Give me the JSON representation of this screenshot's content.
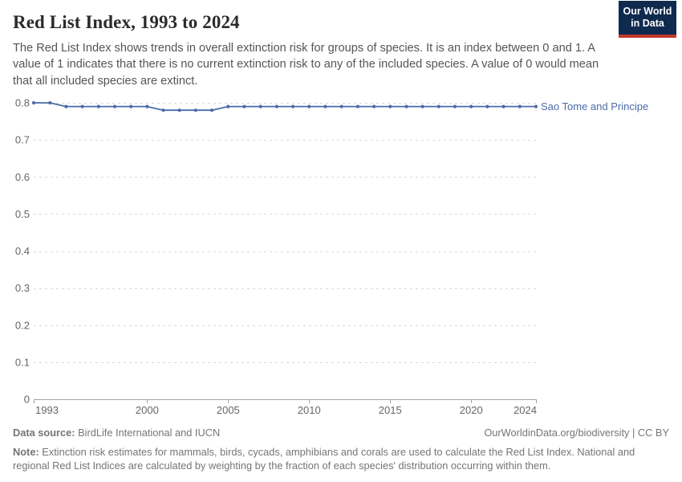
{
  "header": {
    "title": "Red List Index, 1993 to 2024",
    "subtitle": "The Red List Index shows trends in overall extinction risk for groups of species. It is an index between 0 and 1. A value of 1 indicates that there is no current extinction risk to any of the included species. A value of 0 would mean that all included species are extinct.",
    "logo": {
      "line1": "Our World",
      "line2": "in Data",
      "bg_color": "#0e2a4e",
      "accent_color": "#c0392b"
    }
  },
  "chart_data": {
    "type": "line",
    "title": "Red List Index, 1993 to 2024",
    "xlabel": "",
    "ylabel": "",
    "xlim": [
      1993,
      2024
    ],
    "ylim": [
      0,
      0.8
    ],
    "xticks": [
      1993,
      2000,
      2005,
      2010,
      2015,
      2020,
      2024
    ],
    "yticks": [
      0,
      0.1,
      0.2,
      0.3,
      0.4,
      0.5,
      0.6,
      0.7,
      0.8
    ],
    "grid": "horizontal-dashed",
    "legend_position": "right-of-line-end",
    "series": [
      {
        "name": "Sao Tome and Principe",
        "color": "#4c6ba7",
        "x": [
          1993,
          1994,
          1995,
          1996,
          1997,
          1998,
          1999,
          2000,
          2001,
          2002,
          2003,
          2004,
          2005,
          2006,
          2007,
          2008,
          2009,
          2010,
          2011,
          2012,
          2013,
          2014,
          2015,
          2016,
          2017,
          2018,
          2019,
          2020,
          2021,
          2022,
          2023,
          2024
        ],
        "values": [
          0.8,
          0.8,
          0.79,
          0.79,
          0.79,
          0.79,
          0.79,
          0.79,
          0.78,
          0.78,
          0.78,
          0.78,
          0.79,
          0.79,
          0.79,
          0.79,
          0.79,
          0.79,
          0.79,
          0.79,
          0.79,
          0.79,
          0.79,
          0.79,
          0.79,
          0.79,
          0.79,
          0.79,
          0.79,
          0.79,
          0.79,
          0.79
        ]
      }
    ],
    "colors": {
      "gridline": "#d9d9d9",
      "axis": "#a3a3a3",
      "tick_label": "#666666"
    }
  },
  "footer": {
    "sources_label": "Data source:",
    "sources_text": " BirdLife International and IUCN",
    "credit": "OurWorldinData.org/biodiversity | CC BY",
    "note_label": "Note:",
    "note_text": " Extinction risk estimates for mammals, birds, cycads, amphibians and corals are used to calculate the Red List Index. National and regional Red List Indices are calculated by weighting by the fraction of each species' distribution occurring within them."
  }
}
